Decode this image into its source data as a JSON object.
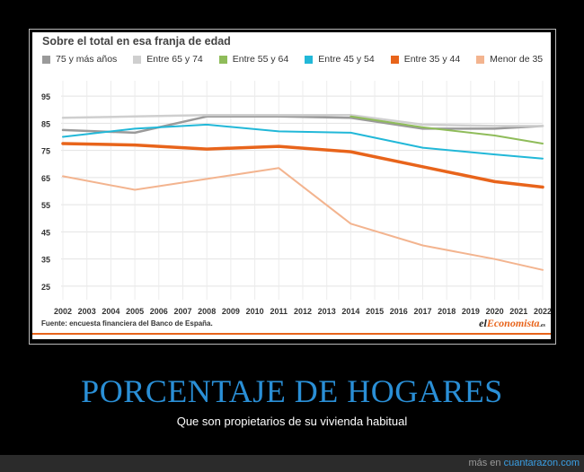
{
  "chart_data": {
    "type": "line",
    "title": "Sobre el total en esa franja de edad",
    "source": "Fuente: encuesta financiera del Banco de España.",
    "x": [
      2002,
      2005,
      2008,
      2011,
      2014,
      2017,
      2020,
      2022
    ],
    "x_ticks": [
      "2002",
      "2003",
      "2004",
      "2005",
      "2006",
      "2007",
      "2008",
      "2009",
      "2010",
      "2011",
      "2012",
      "2013",
      "2014",
      "2015",
      "2016",
      "2017",
      "2018",
      "2019",
      "2020",
      "2021",
      "2022"
    ],
    "y_ticks": [
      95,
      85,
      75,
      65,
      55,
      45,
      35,
      25
    ],
    "ylim": [
      22,
      98
    ],
    "grid": true,
    "legend_position": "top",
    "series": [
      {
        "name": "75 y más años",
        "color": "#9a9a9a",
        "width": 2.5,
        "points": [
          [
            2002,
            82.5
          ],
          [
            2005,
            81.5
          ],
          [
            2008,
            87.5
          ],
          [
            2011,
            87.5
          ],
          [
            2014,
            87.0
          ],
          [
            2017,
            83.0
          ],
          [
            2020,
            83.0
          ],
          [
            2022,
            84.0
          ]
        ]
      },
      {
        "name": "Entre 65 y 74",
        "color": "#cfcfcf",
        "width": 2.5,
        "points": [
          [
            2002,
            87.0
          ],
          [
            2005,
            87.5
          ],
          [
            2008,
            88.0
          ],
          [
            2011,
            88.0
          ],
          [
            2014,
            88.0
          ],
          [
            2017,
            84.5
          ],
          [
            2020,
            84.0
          ],
          [
            2022,
            84.0
          ]
        ]
      },
      {
        "name": "Entre 55 y 64",
        "color": "#8fbc5a",
        "width": 2,
        "points": [
          [
            2014,
            87.5
          ],
          [
            2017,
            83.5
          ],
          [
            2020,
            80.5
          ],
          [
            2022,
            77.5
          ]
        ]
      },
      {
        "name": "Entre 45 y 54",
        "color": "#22b8d8",
        "width": 2,
        "points": [
          [
            2002,
            80.0
          ],
          [
            2005,
            83.0
          ],
          [
            2008,
            84.5
          ],
          [
            2011,
            82.0
          ],
          [
            2014,
            81.5
          ],
          [
            2017,
            76.0
          ],
          [
            2020,
            73.5
          ],
          [
            2022,
            72.0
          ]
        ]
      },
      {
        "name": "Entre 35 y 44",
        "color": "#e8641b",
        "width": 3.5,
        "points": [
          [
            2002,
            77.5
          ],
          [
            2005,
            77.0
          ],
          [
            2008,
            75.5
          ],
          [
            2011,
            76.5
          ],
          [
            2014,
            74.5
          ],
          [
            2017,
            69.0
          ],
          [
            2020,
            63.5
          ],
          [
            2022,
            61.5
          ]
        ]
      },
      {
        "name": "Menor de 35",
        "color": "#f3b48f",
        "width": 2,
        "points": [
          [
            2002,
            65.5
          ],
          [
            2005,
            60.5
          ],
          [
            2008,
            64.5
          ],
          [
            2011,
            68.5
          ],
          [
            2014,
            48.0
          ],
          [
            2017,
            40.0
          ],
          [
            2020,
            35.0
          ],
          [
            2022,
            31.0
          ]
        ]
      }
    ]
  },
  "brand": {
    "prefix": "el",
    "accent": "Economista",
    "suffix": ".es"
  },
  "headline": "PORCENTAJE DE HOGARES",
  "subheadline": "Que son propietarios de su vivienda habitual",
  "footer": {
    "prefix": "más en ",
    "link": "cuantarazon.com"
  }
}
